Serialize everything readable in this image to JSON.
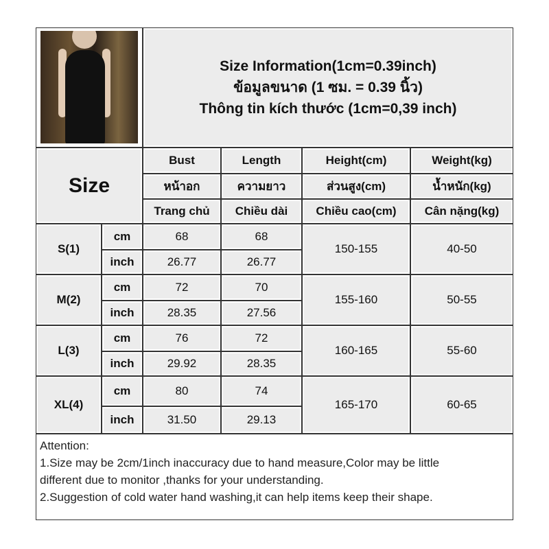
{
  "title": {
    "line1": "Size Information(1cm=0.39inch)",
    "line2": "ข้อมูลขนาด (1 ซม. = 0.39 นิ้ว)",
    "line3": "Thông tin kích thước (1cm=0,39 inch)"
  },
  "size_label": "Size",
  "headers": [
    [
      "Bust",
      "Length",
      "Height(cm)",
      "Weight(kg)"
    ],
    [
      "หน้าอก",
      "ความยาว",
      "ส่วนสูง(cm)",
      "น้ำหนัก(kg)"
    ],
    [
      "Trang chủ",
      "Chiều dài",
      "Chiều cao(cm)",
      "Cân nặng(kg)"
    ]
  ],
  "rows": [
    {
      "size": "S(1)",
      "cm_label": "cm",
      "inch_label": "inch",
      "bust_cm": "68",
      "length_cm": "68",
      "bust_inch": "26.77",
      "length_inch": "26.77",
      "height": "150-155",
      "weight": "40-50"
    },
    {
      "size": "M(2)",
      "cm_label": "cm",
      "inch_label": "inch",
      "bust_cm": "72",
      "length_cm": "70",
      "bust_inch": "28.35",
      "length_inch": "27.56",
      "height": "155-160",
      "weight": "50-55"
    },
    {
      "size": "L(3)",
      "cm_label": "cm",
      "inch_label": "inch",
      "bust_cm": "76",
      "length_cm": "72",
      "bust_inch": "29.92",
      "length_inch": "28.35",
      "height": "160-165",
      "weight": "55-60"
    },
    {
      "size": "XL(4)",
      "cm_label": "cm",
      "inch_label": "inch",
      "bust_cm": "80",
      "length_cm": "74",
      "bust_inch": "31.50",
      "length_inch": "29.13",
      "height": "165-170",
      "weight": "60-65"
    }
  ],
  "notes": [
    "Attention:",
    "1.Size may be 2cm/1inch inaccuracy due to hand measure,Color may be little",
    "different due to monitor ,thanks for your understanding.",
    "2.Suggestion of cold water hand washing,it can help items keep their shape."
  ]
}
